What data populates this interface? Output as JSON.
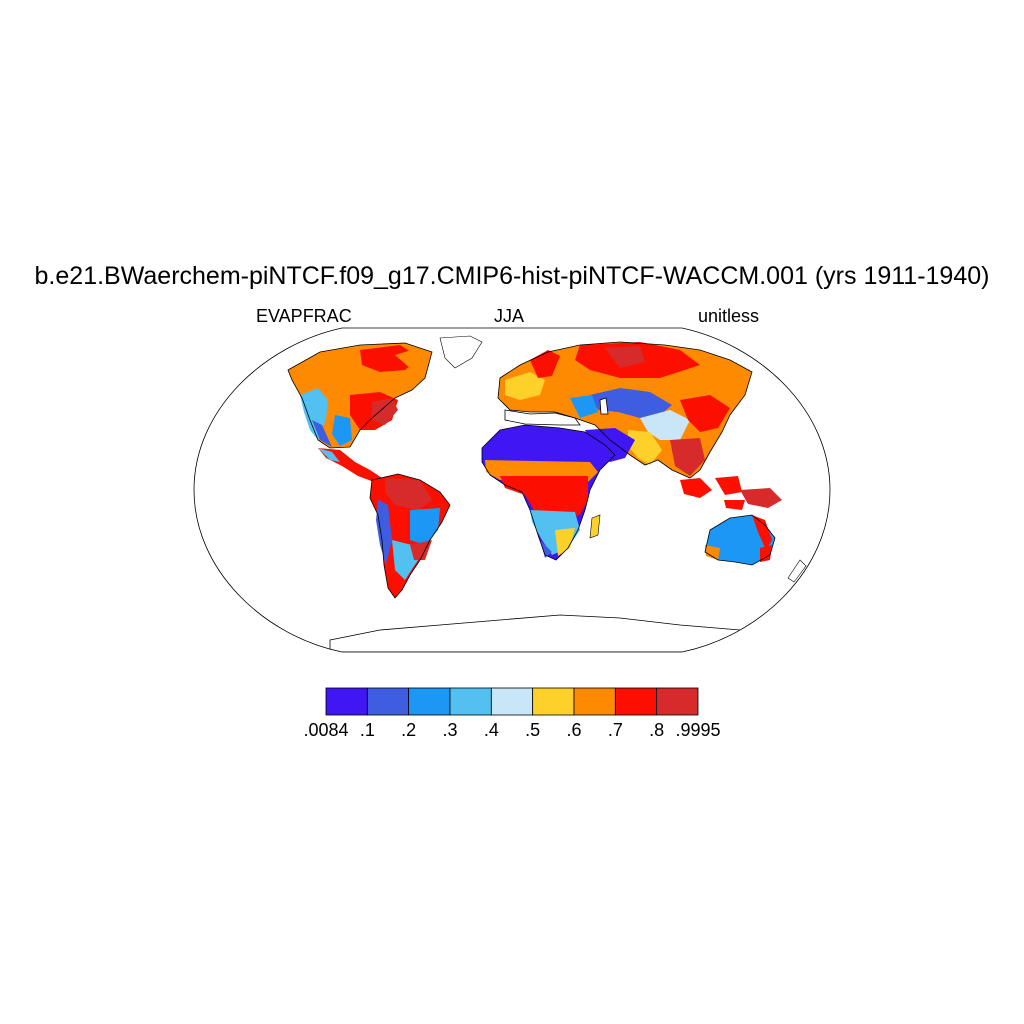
{
  "title": "b.e21.BWaerchem-piNTCF.f09_g17.CMIP6-hist-piNTCF-WACCM.001 (yrs 1911-1940)",
  "left_label": "EVAPFRAC",
  "center_label": "JJA",
  "right_label": "unitless",
  "colorbar": {
    "colors": [
      "#4016f5",
      "#3e5de0",
      "#1c97f5",
      "#52c0f0",
      "#c8e6f7",
      "#fdd12a",
      "#fe8a02",
      "#fd0f00",
      "#d72b2b"
    ],
    "labels": [
      ".0084",
      ".1",
      ".2",
      ".3",
      ".4",
      ".5",
      ".6",
      ".7",
      ".8",
      ".9995"
    ]
  },
  "map": {
    "projection": "Robinson",
    "land_color": "#ffffff"
  }
}
